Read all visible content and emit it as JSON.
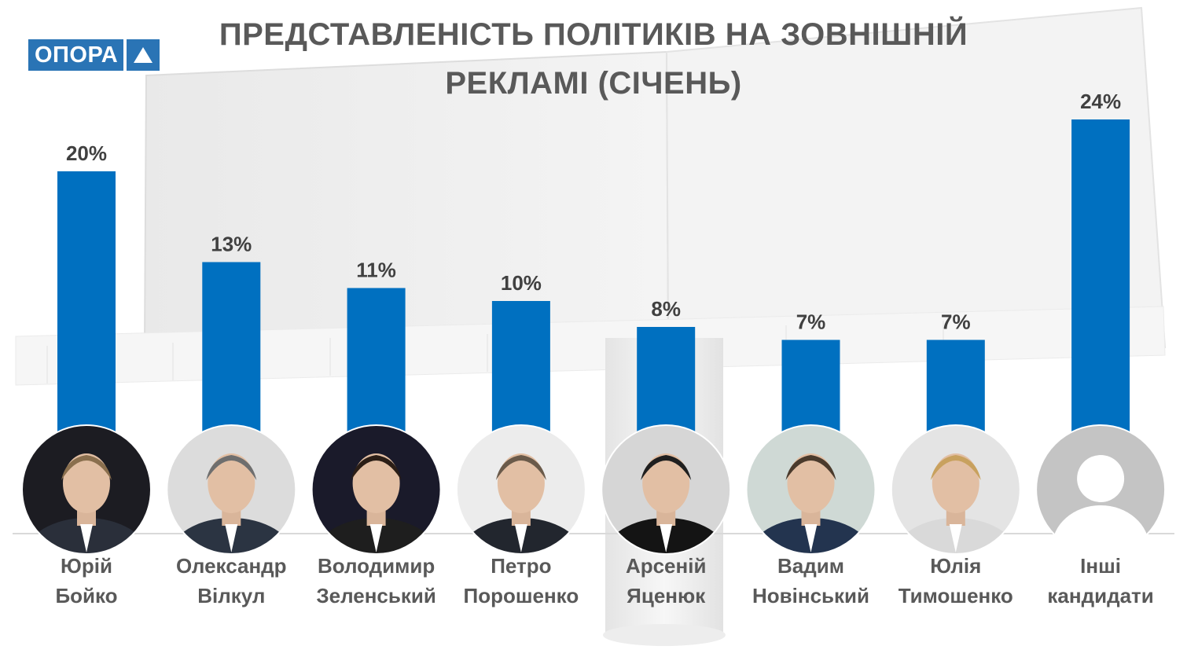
{
  "title": {
    "line1": "ПРЕДСТАВЛЕНІСТЬ ПОЛІТИКІВ НА ЗОВНІШНІЙ",
    "line2": "РЕКЛАМІ (СІЧЕНЬ)"
  },
  "logo": {
    "text": "ОПОРА",
    "icon": "triangle-up-icon",
    "color": "#2a74b5"
  },
  "colors": {
    "bar": "#0070c0",
    "value_text": "#404040",
    "name_text": "#595959"
  },
  "chart_data": {
    "type": "bar",
    "title": "ПРЕДСТАВЛЕНІСТЬ ПОЛІТИКІВ НА ЗОВНІШНІЙ РЕКЛАМІ (СІЧЕНЬ)",
    "categories": [
      "Юрій Бойко",
      "Олександр Вілкул",
      "Володимир Зеленський",
      "Петро Порошенко",
      "Арсеній Яценюк",
      "Вадим Новінський",
      "Юлія Тимошенко",
      "Інші кандидати"
    ],
    "values": [
      20,
      13,
      11,
      10,
      8,
      7,
      7,
      24
    ],
    "data_labels": [
      "20%",
      "13%",
      "11%",
      "10%",
      "8%",
      "7%",
      "7%",
      "24%"
    ],
    "unit": "%",
    "ylim": [
      0,
      24
    ],
    "grid": false,
    "legend": "none"
  },
  "candidates": [
    {
      "first": "Юрій",
      "last": "Бойко",
      "avatar": "photo-avatar"
    },
    {
      "first": "Олександр",
      "last": "Вілкул",
      "avatar": "photo-avatar"
    },
    {
      "first": "Володимир",
      "last": "Зеленський",
      "avatar": "photo-avatar"
    },
    {
      "first": "Петро",
      "last": "Порошенко",
      "avatar": "photo-avatar"
    },
    {
      "first": "Арсеній",
      "last": "Яценюк",
      "avatar": "photo-avatar"
    },
    {
      "first": "Вадим",
      "last": "Новінський",
      "avatar": "photo-avatar"
    },
    {
      "first": "Юлія",
      "last": "Тимошенко",
      "avatar": "photo-avatar"
    },
    {
      "first": "Інші",
      "last": "кандидати",
      "avatar": "generic-user-icon"
    }
  ]
}
